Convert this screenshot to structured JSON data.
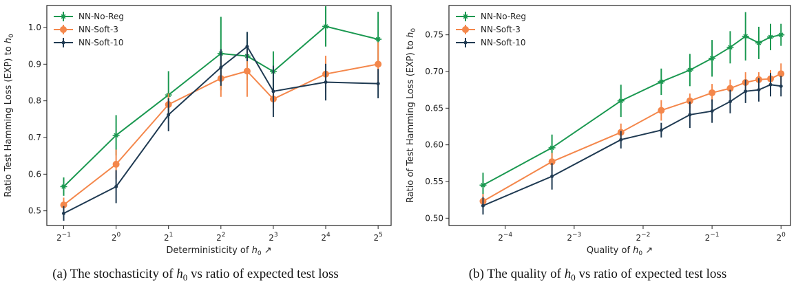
{
  "captions": [
    {
      "prefix": "(a) The stochasticity of ",
      "var": "h",
      "sub": "0",
      "suffix": " vs ratio of expected test loss"
    },
    {
      "prefix": "(b) The quality of ",
      "var": "h",
      "sub": "0",
      "suffix": " vs ratio of expected test loss"
    }
  ],
  "chart_data": [
    {
      "type": "line",
      "ylabel": {
        "text": "Ratio Test Hamming Loss (EXP) to ",
        "var": "h",
        "sub": "0"
      },
      "xlabel": {
        "text": "Deterministicity of ",
        "var": "h",
        "sub": "0",
        "arrow": "↗"
      },
      "xscale": "log2",
      "xlim": [
        0.4,
        38
      ],
      "ylim": [
        0.46,
        1.06
      ],
      "xticks": [
        {
          "v": 0.5,
          "base": "2",
          "exp": "−1"
        },
        {
          "v": 1,
          "base": "2",
          "exp": "0"
        },
        {
          "v": 2,
          "base": "2",
          "exp": "1"
        },
        {
          "v": 4,
          "base": "2",
          "exp": "2"
        },
        {
          "v": 8,
          "base": "2",
          "exp": "3"
        },
        {
          "v": 16,
          "base": "2",
          "exp": "4"
        },
        {
          "v": 32,
          "base": "2",
          "exp": "5"
        }
      ],
      "yticks": [
        0.5,
        0.6,
        0.7,
        0.8,
        0.9,
        1.0
      ],
      "ytick_labels": [
        "0.5",
        "0.6",
        "0.7",
        "0.8",
        "0.9",
        "1.0"
      ],
      "legend": "top-left",
      "series": [
        {
          "name": "NN-No-Reg",
          "color": "#1a9850",
          "marker": "star",
          "x": [
            0.5,
            1,
            2,
            4,
            5.66,
            8,
            16,
            32
          ],
          "y": [
            0.566,
            0.706,
            0.816,
            0.929,
            0.922,
            0.88,
            1.003,
            0.968
          ],
          "err": [
            0.025,
            0.055,
            0.065,
            0.1,
            0.065,
            0.055,
            0.055,
            0.075
          ]
        },
        {
          "name": "NN-Soft-3",
          "color": "#f4874b",
          "marker": "circle",
          "x": [
            0.5,
            1,
            2,
            4,
            5.66,
            8,
            16,
            32
          ],
          "y": [
            0.516,
            0.627,
            0.79,
            0.861,
            0.881,
            0.805,
            0.873,
            0.9
          ],
          "err": [
            0.02,
            0.04,
            0.03,
            0.05,
            0.07,
            0.025,
            0.05,
            0.06
          ]
        },
        {
          "name": "NN-Soft-10",
          "color": "#1f3a52",
          "marker": "dot",
          "x": [
            0.5,
            1,
            2,
            4,
            5.66,
            8,
            16,
            32
          ],
          "y": [
            0.493,
            0.566,
            0.762,
            0.891,
            0.948,
            0.826,
            0.851,
            0.847
          ],
          "err": [
            0.02,
            0.045,
            0.045,
            0.05,
            0.04,
            0.07,
            0.05,
            0.04
          ]
        }
      ]
    },
    {
      "type": "line",
      "ylabel": {
        "text": "Ratio of Test Hamming Loss (EXP) to ",
        "var": "h",
        "sub": "0"
      },
      "xlabel": {
        "text": "Quality of ",
        "var": "h",
        "sub": "0",
        "arrow": "↗"
      },
      "xscale": "log2",
      "xlim": [
        0.0355,
        1.1
      ],
      "ylim": [
        0.49,
        0.79
      ],
      "xticks": [
        {
          "v": 0.0625,
          "base": "2",
          "exp": "−4"
        },
        {
          "v": 0.125,
          "base": "2",
          "exp": "−3"
        },
        {
          "v": 0.25,
          "base": "2",
          "exp": "−2"
        },
        {
          "v": 0.5,
          "base": "2",
          "exp": "−1"
        },
        {
          "v": 1,
          "base": "2",
          "exp": "0"
        }
      ],
      "yticks": [
        0.5,
        0.55,
        0.6,
        0.65,
        0.7,
        0.75
      ],
      "ytick_labels": [
        "0.50",
        "0.55",
        "0.60",
        "0.65",
        "0.70",
        "0.75"
      ],
      "legend": "top-left",
      "series": [
        {
          "name": "NN-No-Reg",
          "color": "#1a9850",
          "marker": "star",
          "x": [
            0.05,
            0.1,
            0.2,
            0.3,
            0.4,
            0.5,
            0.6,
            0.7,
            0.8,
            0.9,
            1.0
          ],
          "y": [
            0.545,
            0.596,
            0.66,
            0.686,
            0.702,
            0.718,
            0.733,
            0.748,
            0.739,
            0.747,
            0.75
          ],
          "err": [
            0.017,
            0.018,
            0.022,
            0.018,
            0.022,
            0.025,
            0.022,
            0.033,
            0.022,
            0.018,
            0.015
          ]
        },
        {
          "name": "NN-Soft-3",
          "color": "#f4874b",
          "marker": "circle",
          "x": [
            0.05,
            0.1,
            0.2,
            0.3,
            0.4,
            0.5,
            0.6,
            0.7,
            0.8,
            0.9,
            1.0
          ],
          "y": [
            0.523,
            0.577,
            0.617,
            0.647,
            0.66,
            0.671,
            0.677,
            0.685,
            0.689,
            0.69,
            0.697
          ],
          "err": [
            0.01,
            0.012,
            0.012,
            0.014,
            0.01,
            0.012,
            0.012,
            0.014,
            0.01,
            0.012,
            0.014
          ]
        },
        {
          "name": "NN-Soft-10",
          "color": "#1f3a52",
          "marker": "dot",
          "x": [
            0.05,
            0.1,
            0.2,
            0.3,
            0.4,
            0.5,
            0.6,
            0.7,
            0.8,
            0.9,
            1.0
          ],
          "y": [
            0.517,
            0.557,
            0.607,
            0.62,
            0.641,
            0.646,
            0.659,
            0.673,
            0.675,
            0.682,
            0.68
          ],
          "err": [
            0.012,
            0.018,
            0.012,
            0.01,
            0.018,
            0.016,
            0.016,
            0.016,
            0.016,
            0.016,
            0.014
          ]
        }
      ]
    }
  ]
}
